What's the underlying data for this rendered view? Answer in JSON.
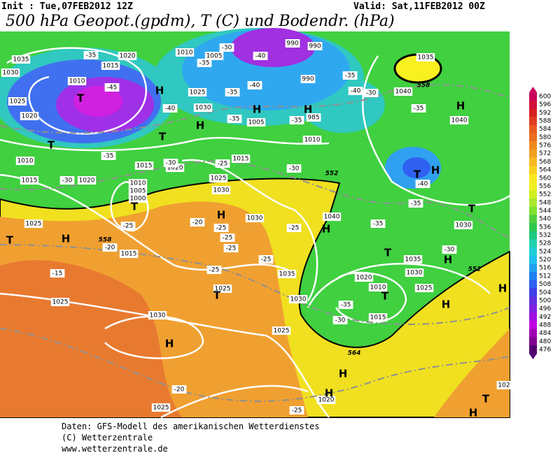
{
  "header": {
    "init": "Init : Tue,07FEB2012 12Z",
    "valid": "Valid: Sat,11FEB2012 00Z",
    "title": "500 hPa Geopot.(gpdm), T (C) und Bodendr. (hPa)"
  },
  "map": {
    "isobar_labels": [
      1035,
      1030,
      1020,
      1015,
      1010,
      1025,
      1020,
      1010,
      1005,
      1025,
      1030,
      990,
      990,
      990,
      985,
      1005,
      1010,
      1010,
      1015,
      1020,
      1015,
      1020,
      1025,
      1030,
      1015,
      1010,
      1005,
      1000,
      1035,
      1040,
      1040,
      1025,
      1015,
      1030,
      1040,
      1035,
      1030,
      1025,
      1025,
      1030,
      1025,
      1020,
      1010,
      1015,
      1035,
      1030,
      1025,
      1030,
      1020,
      1025,
      102
    ],
    "temperature_labels": [
      -35,
      -45,
      -40,
      -35,
      -40,
      -35,
      -40,
      -30,
      -35,
      -35,
      -35,
      -30,
      -35,
      -40,
      -35,
      -35,
      -30,
      -35,
      -30,
      -25,
      -30,
      -30,
      -25,
      -20,
      -25,
      -25,
      -25,
      -25,
      -25,
      -25,
      -20,
      -15,
      -35,
      -30,
      -20,
      -25,
      -40
    ],
    "height_labels": [
      552,
      558,
      558,
      552,
      564
    ],
    "systems": [
      "H",
      "H",
      "H",
      "H",
      "H",
      "H",
      "H",
      "H",
      "H",
      "H",
      "H",
      "H",
      "H",
      "H",
      "H",
      "H",
      "T",
      "T",
      "T",
      "T",
      "T",
      "T",
      "T",
      "T",
      "T",
      "T",
      "T"
    ]
  },
  "colorbar": {
    "labels": [
      600,
      596,
      592,
      588,
      584,
      580,
      576,
      572,
      568,
      564,
      560,
      556,
      552,
      548,
      544,
      540,
      536,
      532,
      528,
      524,
      520,
      516,
      512,
      508,
      504,
      500,
      496,
      492,
      488,
      484,
      480,
      476
    ],
    "colors": [
      "#c8005a",
      "#d0103a",
      "#d82020",
      "#e03c20",
      "#e85a20",
      "#e87020",
      "#f08a20",
      "#f0a020",
      "#f8b820",
      "#f8d020",
      "#f8e820",
      "#f0f020",
      "#d0f020",
      "#a8e830",
      "#80e030",
      "#50d040",
      "#30c850",
      "#20c880",
      "#20d0b0",
      "#20d0d8",
      "#20c0f0",
      "#20a0f0",
      "#2080f0",
      "#3060f0",
      "#4040e8",
      "#6030e0",
      "#8020e0",
      "#a010e0",
      "#c000e0",
      "#a000b0",
      "#800090",
      "#500070"
    ]
  },
  "footer": {
    "lines": [
      "Daten: GFS-Modell des amerikanischen Wetterdienstes",
      "(C) Wetterzentrale",
      "www.wetterzentrale.de"
    ]
  }
}
